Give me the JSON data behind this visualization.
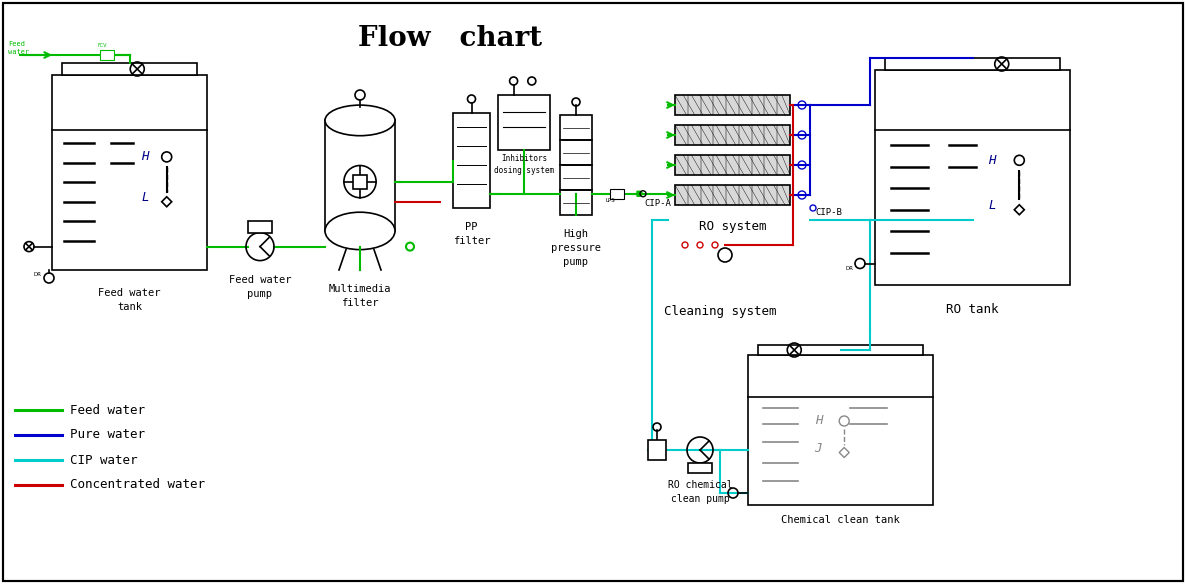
{
  "title": "Flow   chart",
  "title_fontsize": 20,
  "bg_color": "#ffffff",
  "colors": {
    "feed_water": "#00bb00",
    "pure_water": "#0000cc",
    "cip_water": "#00cccc",
    "concentrated_water": "#cc0000",
    "equipment": "#000000",
    "h_color": "#000088",
    "chem_gray": "#888888"
  },
  "legend": [
    {
      "label": "Feed water",
      "color": "#00bb00"
    },
    {
      "label": "Pure water",
      "color": "#0000cc"
    },
    {
      "label": "CIP water",
      "color": "#00cccc"
    },
    {
      "label": "Concentrated water",
      "color": "#cc0000"
    }
  ],
  "labels": {
    "feed_water_tank": "Feed water\ntank",
    "feed_water_pump": "Feed water\npump",
    "multimedia_filter": "Multimedia\nfilter",
    "pp_filter": "PP\nfilter",
    "high_pressure_pump": "High\npressure\npump",
    "cip_a": "CIP-A",
    "ro_system": "RO system",
    "cip_b": "CIP-B",
    "ro_tank": "RO tank",
    "cleaning_system": "Cleaning system",
    "ro_chemical_clean_pump": "RO chemical\nclean pump",
    "chemical_clean_tank": "Chemical clean tank",
    "inhibitors": "Inhibitors\ndosing system",
    "feed_water_label": "Feed\nwater"
  }
}
